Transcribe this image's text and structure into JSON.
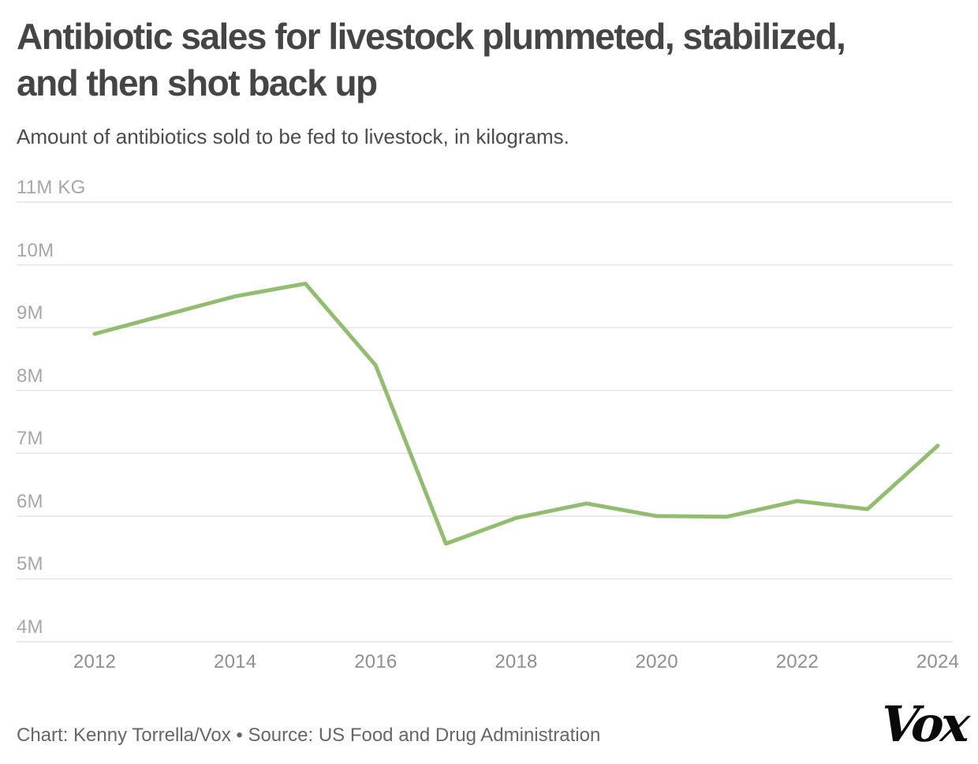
{
  "header": {
    "title_lines": [
      "Antibiotic sales for livestock plummeted, stabilized,",
      "and then shot back up"
    ],
    "subtitle": "Amount of antibiotics sold to be fed to livestock, in kilograms."
  },
  "footer": {
    "credit": "Chart: Kenny Torrella/Vox • Source: US Food and Drug Administration",
    "logo_text": "Vox"
  },
  "chart_data": {
    "type": "line",
    "title": "Antibiotic sales for livestock plummeted, stabilized, and then shot back up",
    "subtitle": "Amount of antibiotics sold to be fed to livestock, in kilograms.",
    "unit": "million kilograms",
    "x": [
      2012,
      2013,
      2014,
      2015,
      2016,
      2017,
      2018,
      2019,
      2020,
      2021,
      2022,
      2023,
      2024
    ],
    "series": [
      {
        "name": "Antibiotics sold to be fed to livestock (million kg)",
        "values": [
          8.9,
          9.2,
          9.5,
          9.7,
          8.4,
          5.56,
          5.97,
          6.2,
          6.0,
          5.99,
          6.24,
          6.11,
          7.12
        ]
      }
    ],
    "y_axis": {
      "min": 4,
      "max": 11,
      "ticks": [
        {
          "value": 11,
          "label": "11M KG"
        },
        {
          "value": 10,
          "label": "10M"
        },
        {
          "value": 9,
          "label": "9M"
        },
        {
          "value": 8,
          "label": "8M"
        },
        {
          "value": 7,
          "label": "7M"
        },
        {
          "value": 6,
          "label": "6M"
        },
        {
          "value": 5,
          "label": "5M"
        },
        {
          "value": 4,
          "label": "4M"
        }
      ]
    },
    "x_axis": {
      "ticks": [
        {
          "value": 2012,
          "label": "2012"
        },
        {
          "value": 2014,
          "label": "2014"
        },
        {
          "value": 2016,
          "label": "2016"
        },
        {
          "value": 2018,
          "label": "2018"
        },
        {
          "value": 2020,
          "label": "2020"
        },
        {
          "value": 2022,
          "label": "2022"
        },
        {
          "value": 2024,
          "label": "2024"
        }
      ]
    },
    "line_color": "#92bd71",
    "grid_color": "#e4e4e4",
    "gridlines": "horizontal",
    "legend": false
  }
}
